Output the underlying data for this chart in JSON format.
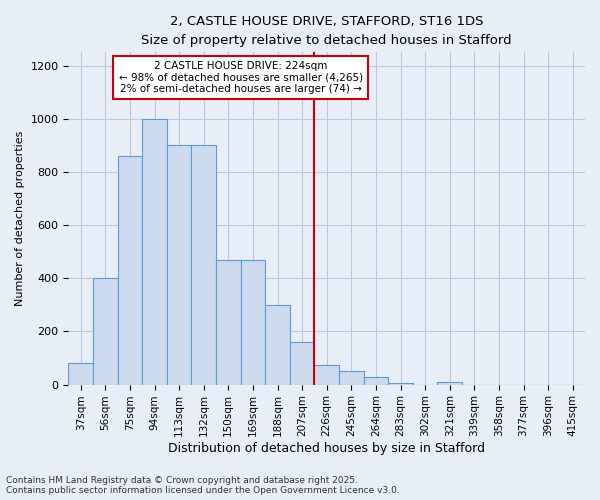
{
  "title1": "2, CASTLE HOUSE DRIVE, STAFFORD, ST16 1DS",
  "title2": "Size of property relative to detached houses in Stafford",
  "xlabel": "Distribution of detached houses by size in Stafford",
  "ylabel": "Number of detached properties",
  "bar_color": "#cddaed",
  "bar_edge_color": "#5b9bd5",
  "grid_color": "#c0c8d8",
  "bg_color": "#e8eef8",
  "vline_color": "#cc0000",
  "categories": [
    "37sqm",
    "56sqm",
    "75sqm",
    "94sqm",
    "113sqm",
    "132sqm",
    "150sqm",
    "169sqm",
    "188sqm",
    "207sqm",
    "226sqm",
    "245sqm",
    "264sqm",
    "283sqm",
    "302sqm",
    "321sqm",
    "339sqm",
    "358sqm",
    "377sqm",
    "396sqm",
    "415sqm"
  ],
  "values": [
    80,
    400,
    860,
    1000,
    900,
    900,
    470,
    470,
    300,
    160,
    75,
    50,
    30,
    5,
    0,
    10,
    0,
    0,
    0,
    0,
    0
  ],
  "annotation_title": "2 CASTLE HOUSE DRIVE: 224sqm",
  "annotation_line1": "← 98% of detached houses are smaller (4,265)",
  "annotation_line2": "2% of semi-detached houses are larger (74) →",
  "annotation_box_color": "#ffffff",
  "annotation_border_color": "#cc0000",
  "footnote1": "Contains HM Land Registry data © Crown copyright and database right 2025.",
  "footnote2": "Contains public sector information licensed under the Open Government Licence v3.0.",
  "ylim": [
    0,
    1250
  ],
  "yticks": [
    0,
    200,
    400,
    600,
    800,
    1000,
    1200
  ],
  "vline_bar_idx": 10
}
